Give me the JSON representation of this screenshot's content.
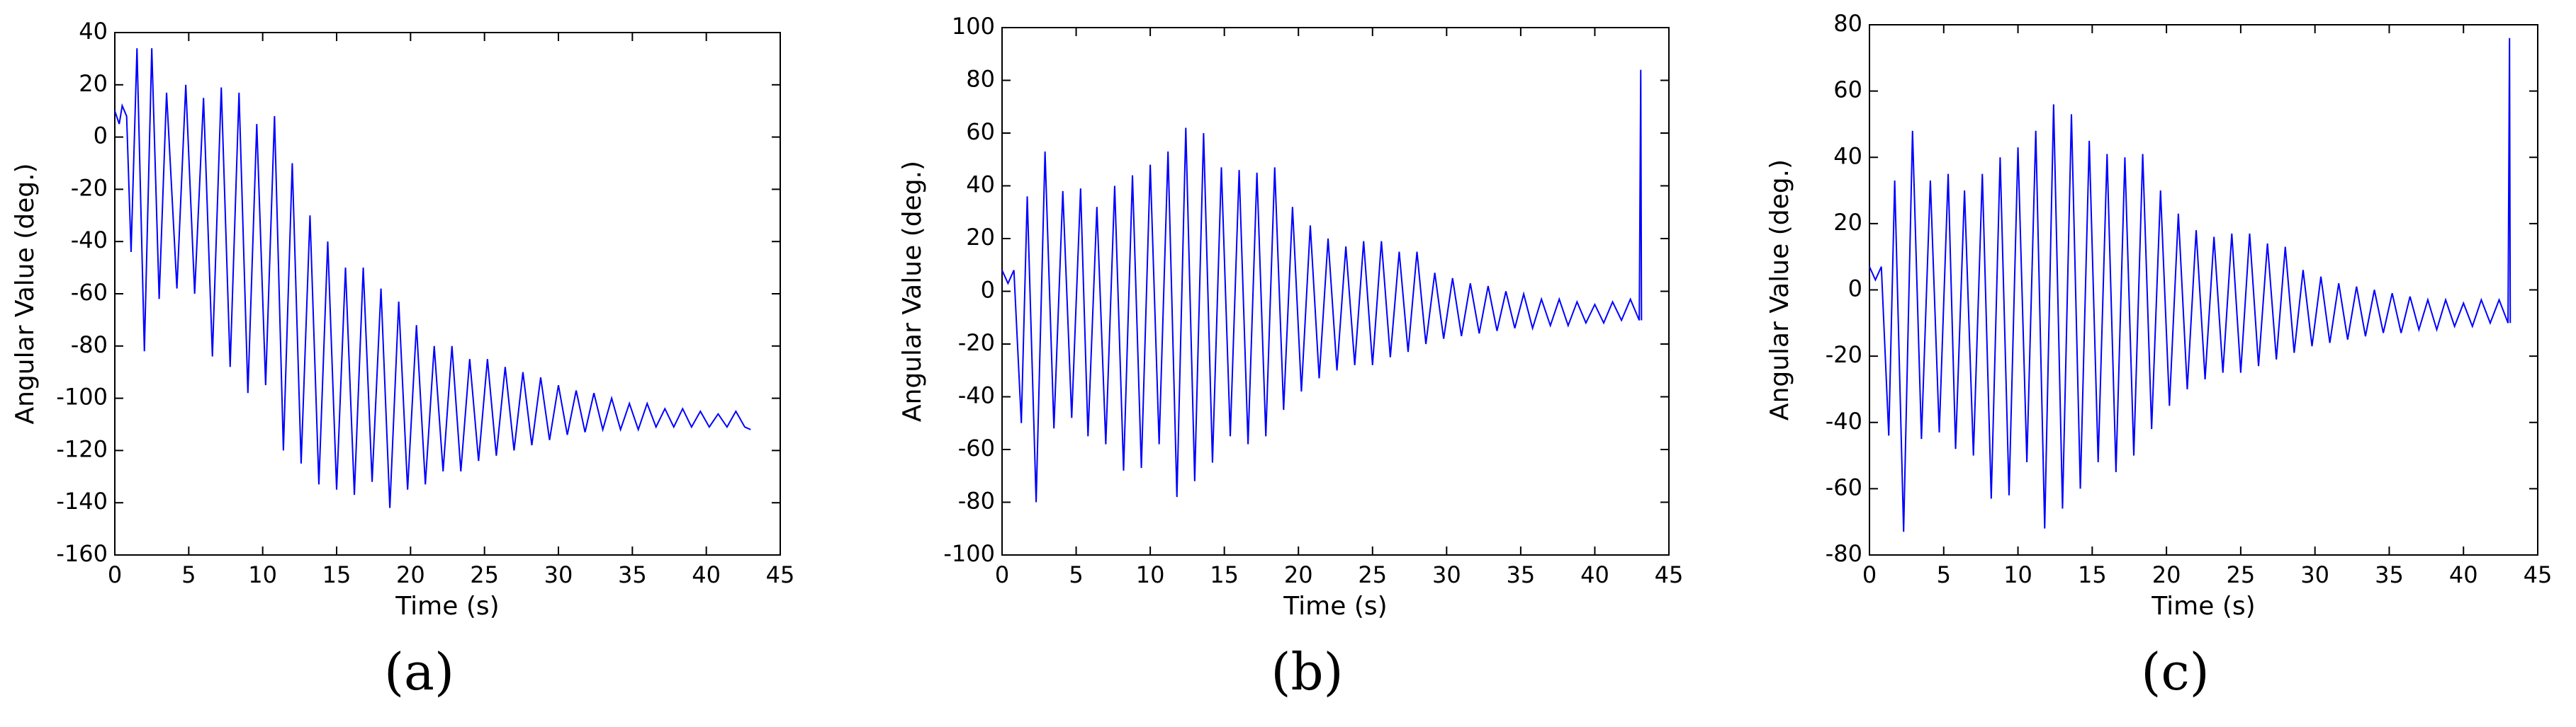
{
  "chart_data": [
    {
      "type": "line",
      "caption": "(a)",
      "xlabel": "Time (s)",
      "ylabel": "Angular Value (deg.)",
      "color": "#0000ff",
      "xlim": [
        0,
        45
      ],
      "xticks": [
        0,
        5,
        10,
        15,
        20,
        25,
        30,
        35,
        40,
        45
      ],
      "ylim": [
        -160,
        40
      ],
      "yticks": [
        -160,
        -140,
        -120,
        -100,
        -80,
        -60,
        -40,
        -20,
        0,
        20,
        40
      ],
      "x": [
        0,
        0.3,
        0.5,
        0.8,
        1.1,
        1.5,
        2.0,
        2.5,
        3.0,
        3.5,
        4.2,
        4.8,
        5.4,
        6.0,
        6.6,
        7.2,
        7.8,
        8.4,
        9.0,
        9.6,
        10.2,
        10.8,
        11.4,
        12.0,
        12.6,
        13.2,
        13.8,
        14.4,
        15.0,
        15.6,
        16.2,
        16.8,
        17.4,
        18.0,
        18.6,
        19.2,
        19.8,
        20.4,
        21.0,
        21.6,
        22.2,
        22.8,
        23.4,
        24.0,
        24.6,
        25.2,
        25.8,
        26.4,
        27.0,
        27.6,
        28.2,
        28.8,
        29.4,
        30.0,
        30.6,
        31.2,
        31.8,
        32.4,
        33.0,
        33.6,
        34.2,
        34.8,
        35.4,
        36.0,
        36.6,
        37.2,
        37.8,
        38.4,
        39.0,
        39.6,
        40.2,
        40.8,
        41.4,
        42.0,
        42.6,
        43.0
      ],
      "values": [
        10,
        5,
        12,
        8,
        -44,
        34,
        -82,
        34,
        -62,
        17,
        -58,
        20,
        -60,
        15,
        -84,
        19,
        -88,
        17,
        -98,
        5,
        -95,
        8,
        -120,
        -10,
        -125,
        -30,
        -133,
        -40,
        -135,
        -50,
        -137,
        -50,
        -132,
        -58,
        -142,
        -63,
        -135,
        -72,
        -133,
        -80,
        -128,
        -80,
        -128,
        -85,
        -124,
        -85,
        -122,
        -88,
        -120,
        -90,
        -118,
        -92,
        -116,
        -95,
        -114,
        -97,
        -113,
        -98,
        -112,
        -100,
        -112,
        -102,
        -112,
        -102,
        -111,
        -104,
        -111,
        -104,
        -111,
        -105,
        -111,
        -106,
        -111,
        -105,
        -111,
        -112
      ]
    },
    {
      "type": "line",
      "caption": "(b)",
      "xlabel": "Time (s)",
      "ylabel": "Angular Value (deg.)",
      "color": "#0000ff",
      "xlim": [
        0,
        45
      ],
      "xticks": [
        0,
        5,
        10,
        15,
        20,
        25,
        30,
        35,
        40,
        45
      ],
      "ylim": [
        -100,
        100
      ],
      "yticks": [
        -100,
        -80,
        -60,
        -40,
        -20,
        0,
        20,
        40,
        60,
        80,
        100
      ],
      "x": [
        0,
        0.4,
        0.8,
        1.3,
        1.7,
        2.3,
        2.9,
        3.5,
        4.1,
        4.7,
        5.3,
        5.8,
        6.4,
        7.0,
        7.6,
        8.2,
        8.8,
        9.4,
        10.0,
        10.6,
        11.2,
        11.8,
        12.4,
        13.0,
        13.6,
        14.2,
        14.8,
        15.4,
        16.0,
        16.6,
        17.2,
        17.8,
        18.4,
        19.0,
        19.6,
        20.2,
        20.8,
        21.4,
        22.0,
        22.6,
        23.2,
        23.8,
        24.4,
        25.0,
        25.6,
        26.2,
        26.8,
        27.4,
        28.0,
        28.6,
        29.2,
        29.8,
        30.4,
        31.0,
        31.6,
        32.2,
        32.8,
        33.4,
        34.0,
        34.6,
        35.2,
        35.8,
        36.4,
        37.0,
        37.6,
        38.2,
        38.8,
        39.4,
        40.0,
        40.6,
        41.2,
        41.8,
        42.4,
        43.0,
        43.1,
        43.15
      ],
      "values": [
        8,
        3,
        8,
        -50,
        36,
        -80,
        53,
        -52,
        38,
        -48,
        39,
        -55,
        32,
        -58,
        40,
        -68,
        44,
        -67,
        48,
        -58,
        53,
        -78,
        62,
        -72,
        60,
        -65,
        47,
        -55,
        46,
        -58,
        45,
        -55,
        47,
        -45,
        32,
        -38,
        25,
        -33,
        20,
        -30,
        17,
        -28,
        19,
        -28,
        19,
        -25,
        15,
        -23,
        15,
        -20,
        7,
        -18,
        5,
        -17,
        3,
        -16,
        2,
        -15,
        0,
        -14,
        -1,
        -14,
        -3,
        -13,
        -3,
        -13,
        -4,
        -12,
        -5,
        -12,
        -4,
        -11,
        -3,
        -11,
        84,
        -11
      ]
    },
    {
      "type": "line",
      "caption": "(c)",
      "xlabel": "Time (s)",
      "ylabel": "Angular Value (deg.)",
      "color": "#0000ff",
      "xlim": [
        0,
        45
      ],
      "xticks": [
        0,
        5,
        10,
        15,
        20,
        25,
        30,
        35,
        40,
        45
      ],
      "ylim": [
        -80,
        80
      ],
      "yticks": [
        -80,
        -60,
        -40,
        -20,
        0,
        20,
        40,
        60,
        80
      ],
      "x": [
        0,
        0.4,
        0.8,
        1.3,
        1.7,
        2.3,
        2.9,
        3.5,
        4.1,
        4.7,
        5.3,
        5.8,
        6.4,
        7.0,
        7.6,
        8.2,
        8.8,
        9.4,
        10.0,
        10.6,
        11.2,
        11.8,
        12.4,
        13.0,
        13.6,
        14.2,
        14.8,
        15.4,
        16.0,
        16.6,
        17.2,
        17.8,
        18.4,
        19.0,
        19.6,
        20.2,
        20.8,
        21.4,
        22.0,
        22.6,
        23.2,
        23.8,
        24.4,
        25.0,
        25.6,
        26.2,
        26.8,
        27.4,
        28.0,
        28.6,
        29.2,
        29.8,
        30.4,
        31.0,
        31.6,
        32.2,
        32.8,
        33.4,
        34.0,
        34.6,
        35.2,
        35.8,
        36.4,
        37.0,
        37.6,
        38.2,
        38.8,
        39.4,
        40.0,
        40.6,
        41.2,
        41.8,
        42.4,
        43.0,
        43.1,
        43.15
      ],
      "values": [
        7,
        3,
        7,
        -44,
        33,
        -73,
        48,
        -45,
        33,
        -43,
        35,
        -48,
        30,
        -50,
        35,
        -63,
        40,
        -62,
        43,
        -52,
        48,
        -72,
        56,
        -66,
        53,
        -60,
        45,
        -52,
        41,
        -55,
        40,
        -50,
        41,
        -42,
        30,
        -35,
        23,
        -30,
        18,
        -27,
        16,
        -25,
        17,
        -25,
        17,
        -23,
        14,
        -21,
        13,
        -19,
        6,
        -17,
        4,
        -16,
        2,
        -15,
        1,
        -14,
        0,
        -13,
        -1,
        -13,
        -2,
        -12,
        -3,
        -12,
        -3,
        -11,
        -4,
        -11,
        -3,
        -10,
        -3,
        -10,
        76,
        -10
      ]
    }
  ]
}
